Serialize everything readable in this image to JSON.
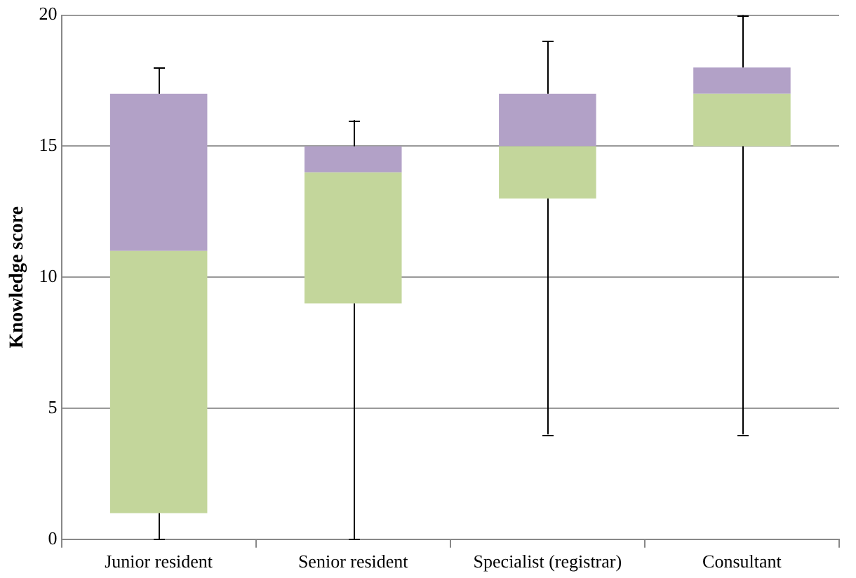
{
  "chart_data": {
    "type": "box",
    "ylabel": "Knowledge score",
    "categories": [
      "Junior resident",
      "Senior resident",
      "Specialist (registrar)",
      "Consultant"
    ],
    "colors": [
      [
        "#c3d69b",
        "#b2a1c7"
      ],
      [
        "#c3d69b",
        "#b2a1c7"
      ],
      [
        "#c3d69b",
        "#b2a1c7"
      ],
      [
        "#c3d69b",
        "#b2a1c7"
      ]
    ],
    "boxes": [
      {
        "low": 0,
        "q1": 1,
        "median": 11,
        "q3": 17,
        "high": 18
      },
      {
        "low": 0,
        "q1": 9,
        "median": 14,
        "q3": 15,
        "high": 16
      },
      {
        "low": 4,
        "q1": 13,
        "median": 15,
        "q3": 17,
        "high": 19
      },
      {
        "low": 4,
        "q1": 15,
        "median": 17,
        "q3": 18,
        "high": 20
      }
    ],
    "ylim": [
      0,
      20
    ],
    "yticks": [
      0,
      5,
      10,
      15,
      20
    ],
    "grid": "y",
    "legend": false
  }
}
